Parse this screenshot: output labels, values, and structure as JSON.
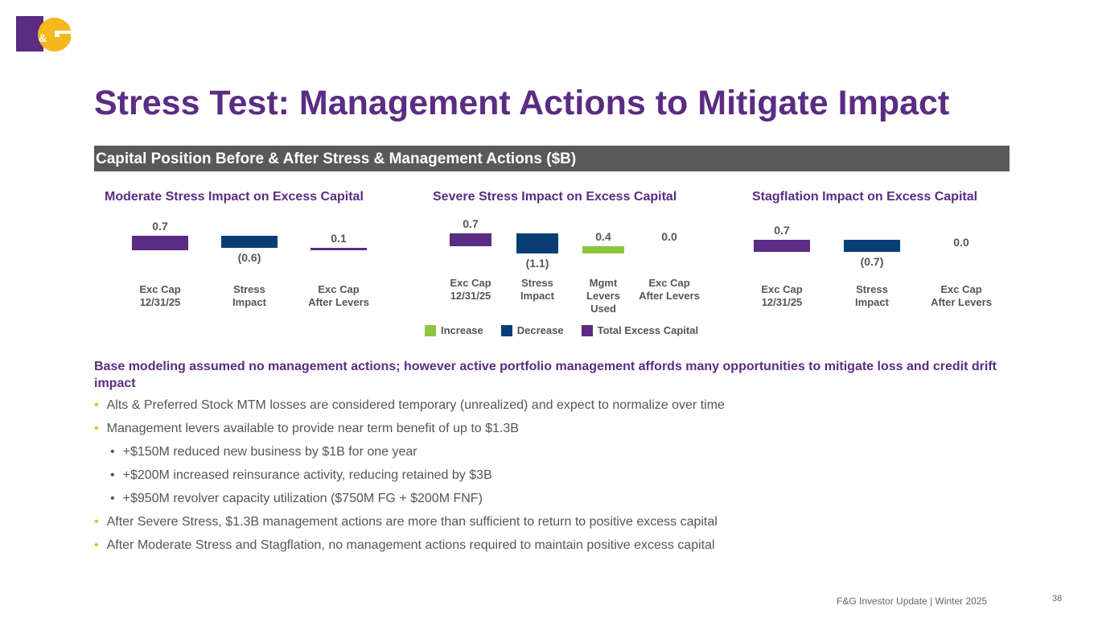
{
  "logo_text": "F&G",
  "title": "Stress Test: Management Actions to Mitigate Impact",
  "band": "Capital Position Before & After Stress & Management Actions ($B)",
  "colors": {
    "increase": "#8cc63f",
    "decrease": "#073f74",
    "total": "#5b2c83"
  },
  "chart_data": [
    {
      "type": "bar",
      "subtype": "waterfall",
      "title": "Moderate Stress Impact on Excess Capital",
      "categories": [
        "Exc Cap\n12/31/25",
        "Stress\nImpact",
        "Exc Cap\nAfter Levers"
      ],
      "values": [
        0.7,
        -0.6,
        0.1
      ],
      "kinds": [
        "total",
        "decrease",
        "total"
      ],
      "labels": [
        "0.7",
        "(0.6)",
        "0.1"
      ]
    },
    {
      "type": "bar",
      "subtype": "waterfall",
      "title": "Severe Stress Impact on Excess Capital",
      "categories": [
        "Exc Cap\n12/31/25",
        "Stress\nImpact",
        "Mgmt\nLevers\nUsed",
        "Exc Cap\nAfter Levers"
      ],
      "values": [
        0.7,
        -1.1,
        0.4,
        0.0
      ],
      "kinds": [
        "total",
        "decrease",
        "increase",
        "total"
      ],
      "labels": [
        "0.7",
        "(1.1)",
        "0.4",
        "0.0"
      ],
      "legend": [
        "Increase",
        "Decrease",
        "Total Excess Capital"
      ]
    },
    {
      "type": "bar",
      "subtype": "waterfall",
      "title": "Stagflation Impact on Excess Capital",
      "categories": [
        "Exc Cap\n12/31/25",
        "Stress\nImpact",
        "Exc Cap\nAfter Levers"
      ],
      "values": [
        0.7,
        -0.7,
        0.0
      ],
      "kinds": [
        "total",
        "decrease",
        "total"
      ],
      "labels": [
        "0.7",
        "(0.7)",
        "0.0"
      ]
    }
  ],
  "intro": "Base modeling assumed no management actions; however active portfolio management affords many opportunities to mitigate loss and credit drift impact",
  "bullets": [
    {
      "level": 1,
      "text": "Alts & Preferred Stock MTM losses are considered temporary (unrealized) and expect to normalize over time"
    },
    {
      "level": 1,
      "text": "Management levers available to provide near term benefit of up to $1.3B"
    },
    {
      "level": 2,
      "text": "+$150M reduced new business by $1B for one year"
    },
    {
      "level": 2,
      "text": "+$200M increased reinsurance activity, reducing retained by $3B"
    },
    {
      "level": 2,
      "text": "+$950M revolver capacity utilization ($750M FG + $200M FNF)"
    },
    {
      "level": 1,
      "text": "After Severe Stress, $1.3B management actions are more than sufficient to return to positive excess capital"
    },
    {
      "level": 1,
      "text": "After Moderate Stress and Stagflation, no management actions required to maintain positive excess capital"
    }
  ],
  "footer": "F&G Investor Update |  Winter 2025",
  "page": "38"
}
